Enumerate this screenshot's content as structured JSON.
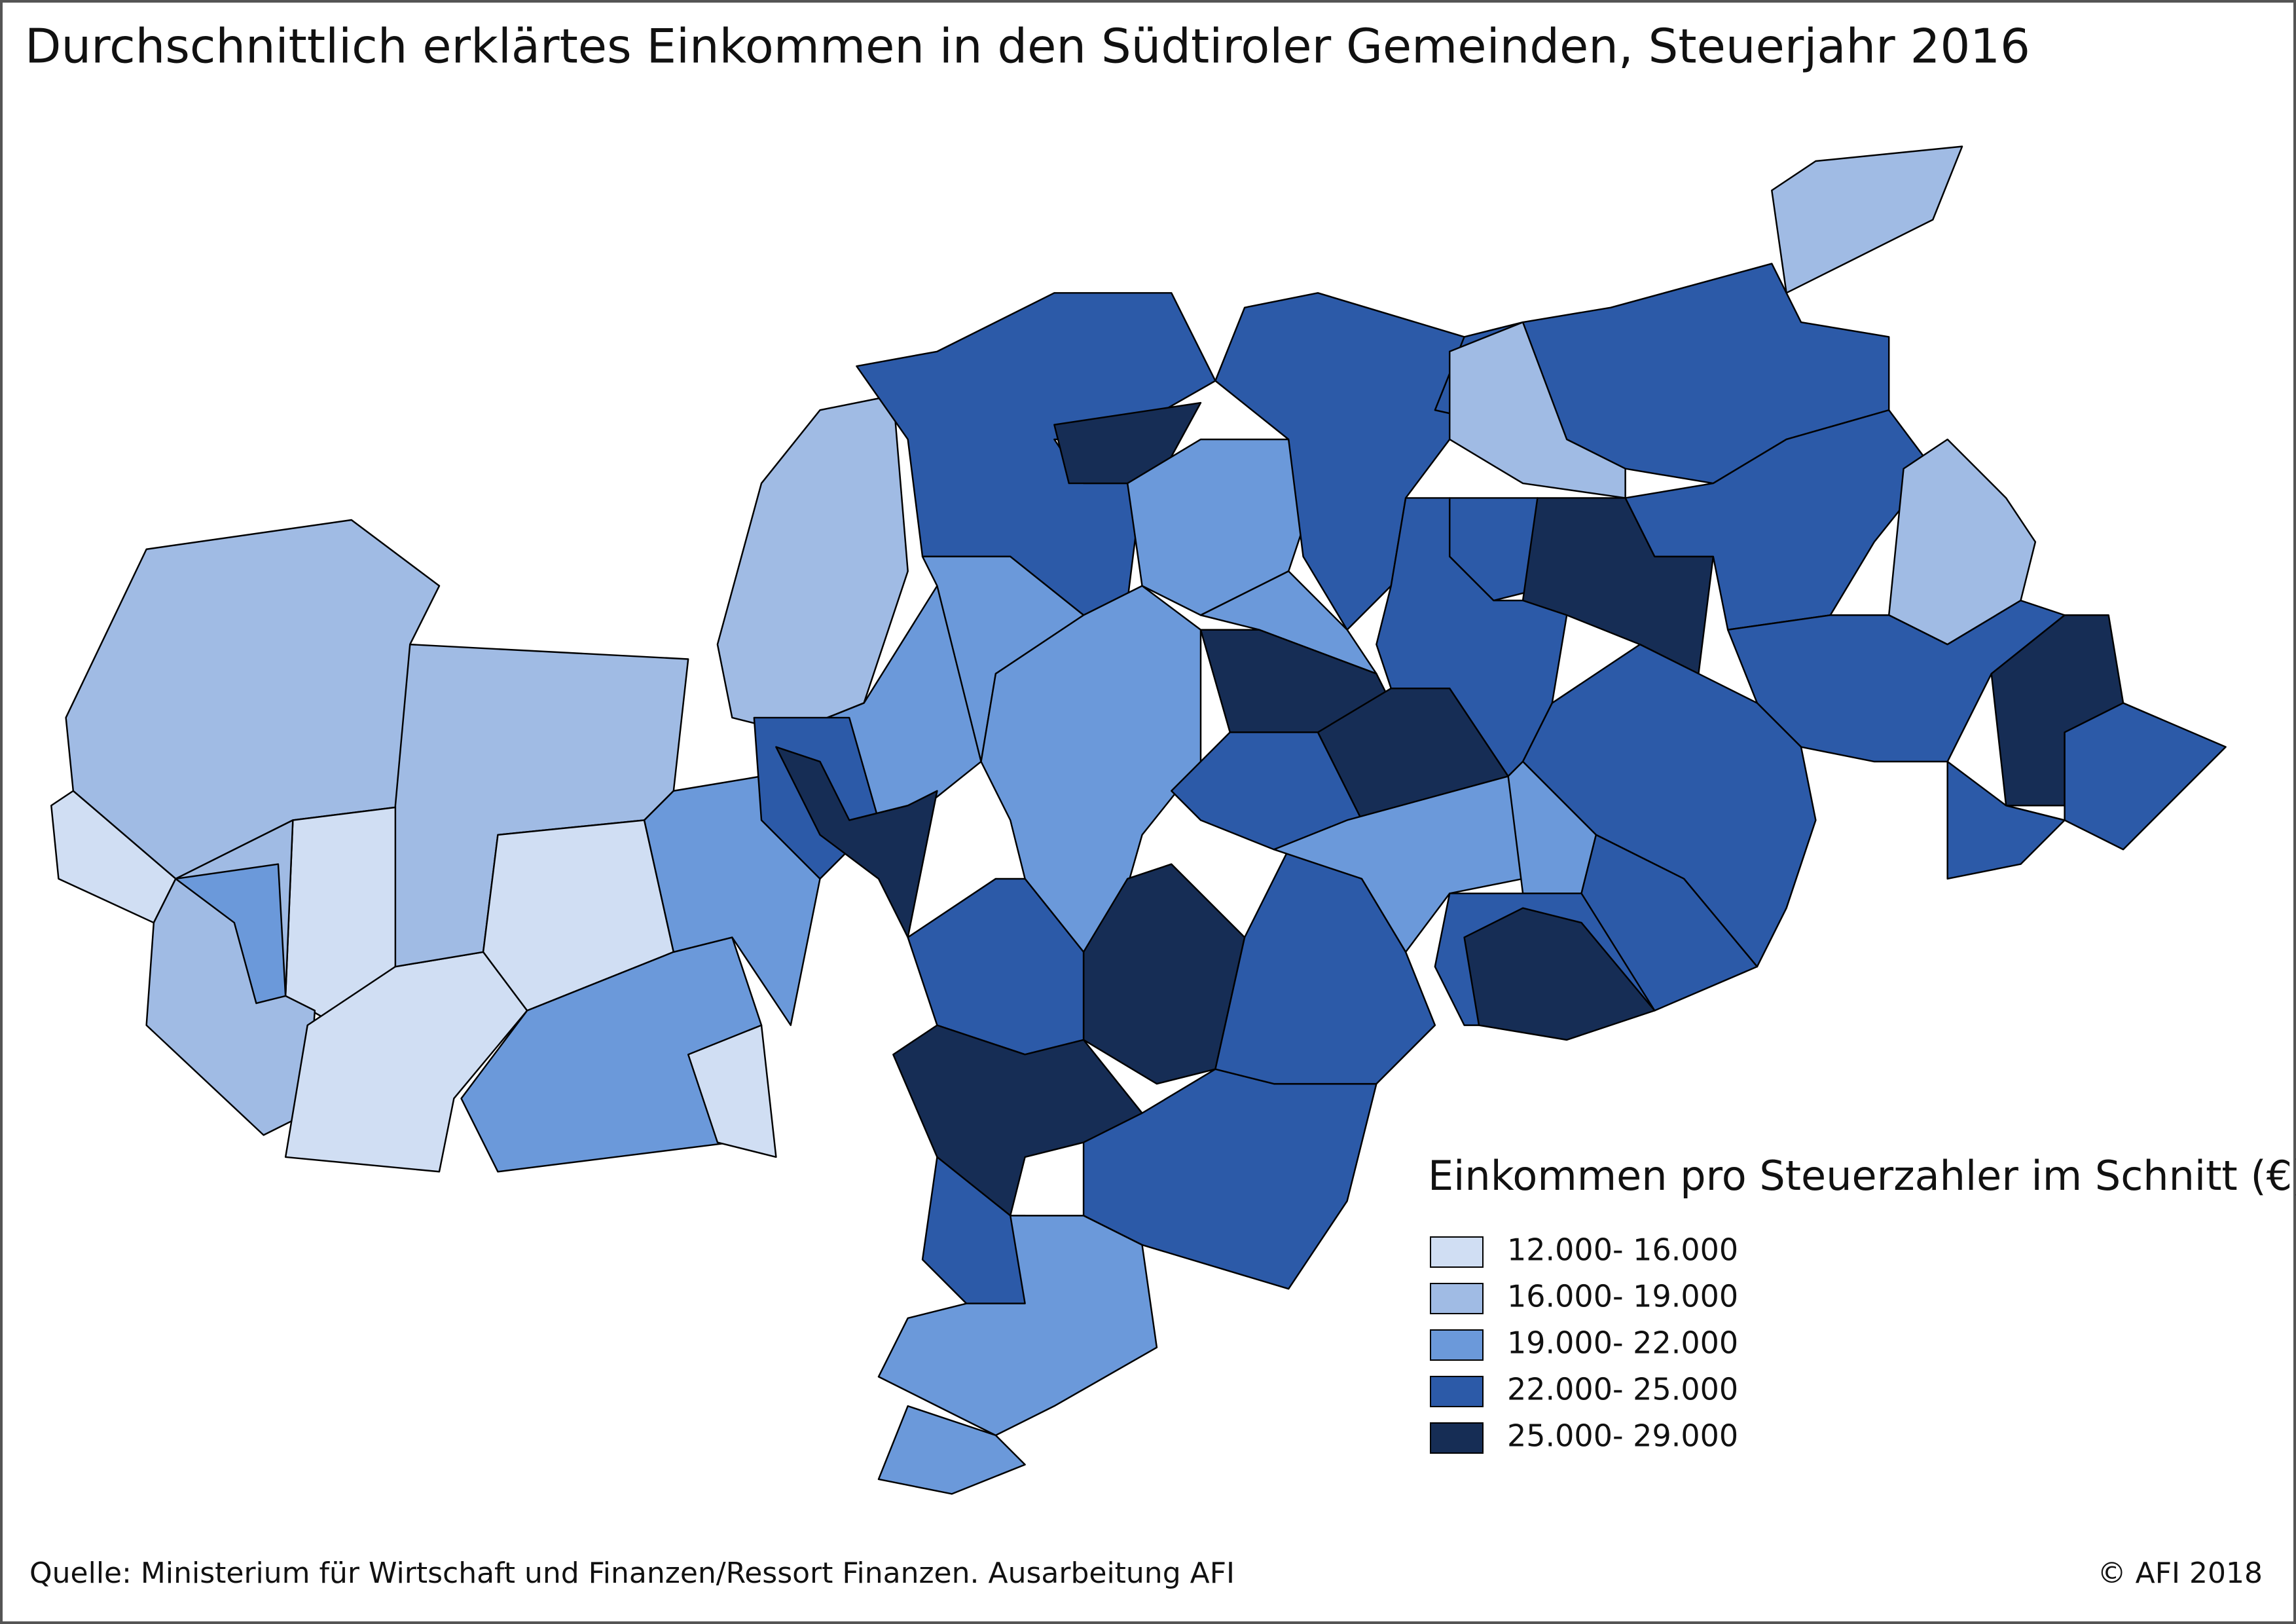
{
  "title": "Durchschnittlich erklärtes Einkommen in den Südtiroler Gemeinden, Steuerjahr 2016",
  "legend": {
    "title": "Einkommen pro Steuerzahler im Schnitt (€)",
    "entries": [
      {
        "label": "12.000- 16.000",
        "color": "#d0def3"
      },
      {
        "label": "16.000- 19.000",
        "color": "#a0bbe4"
      },
      {
        "label": "19.000- 22.000",
        "color": "#6b99da"
      },
      {
        "label": "22.000- 25.000",
        "color": "#2c5aa8"
      },
      {
        "label": "25.000- 29.000",
        "color": "#162d55"
      }
    ]
  },
  "source": "Quelle: Ministerium für Wirtschaft und Finanzen/Ressort Finanzen. Ausarbeitung AFI",
  "copyright": "© AFI 2018"
}
